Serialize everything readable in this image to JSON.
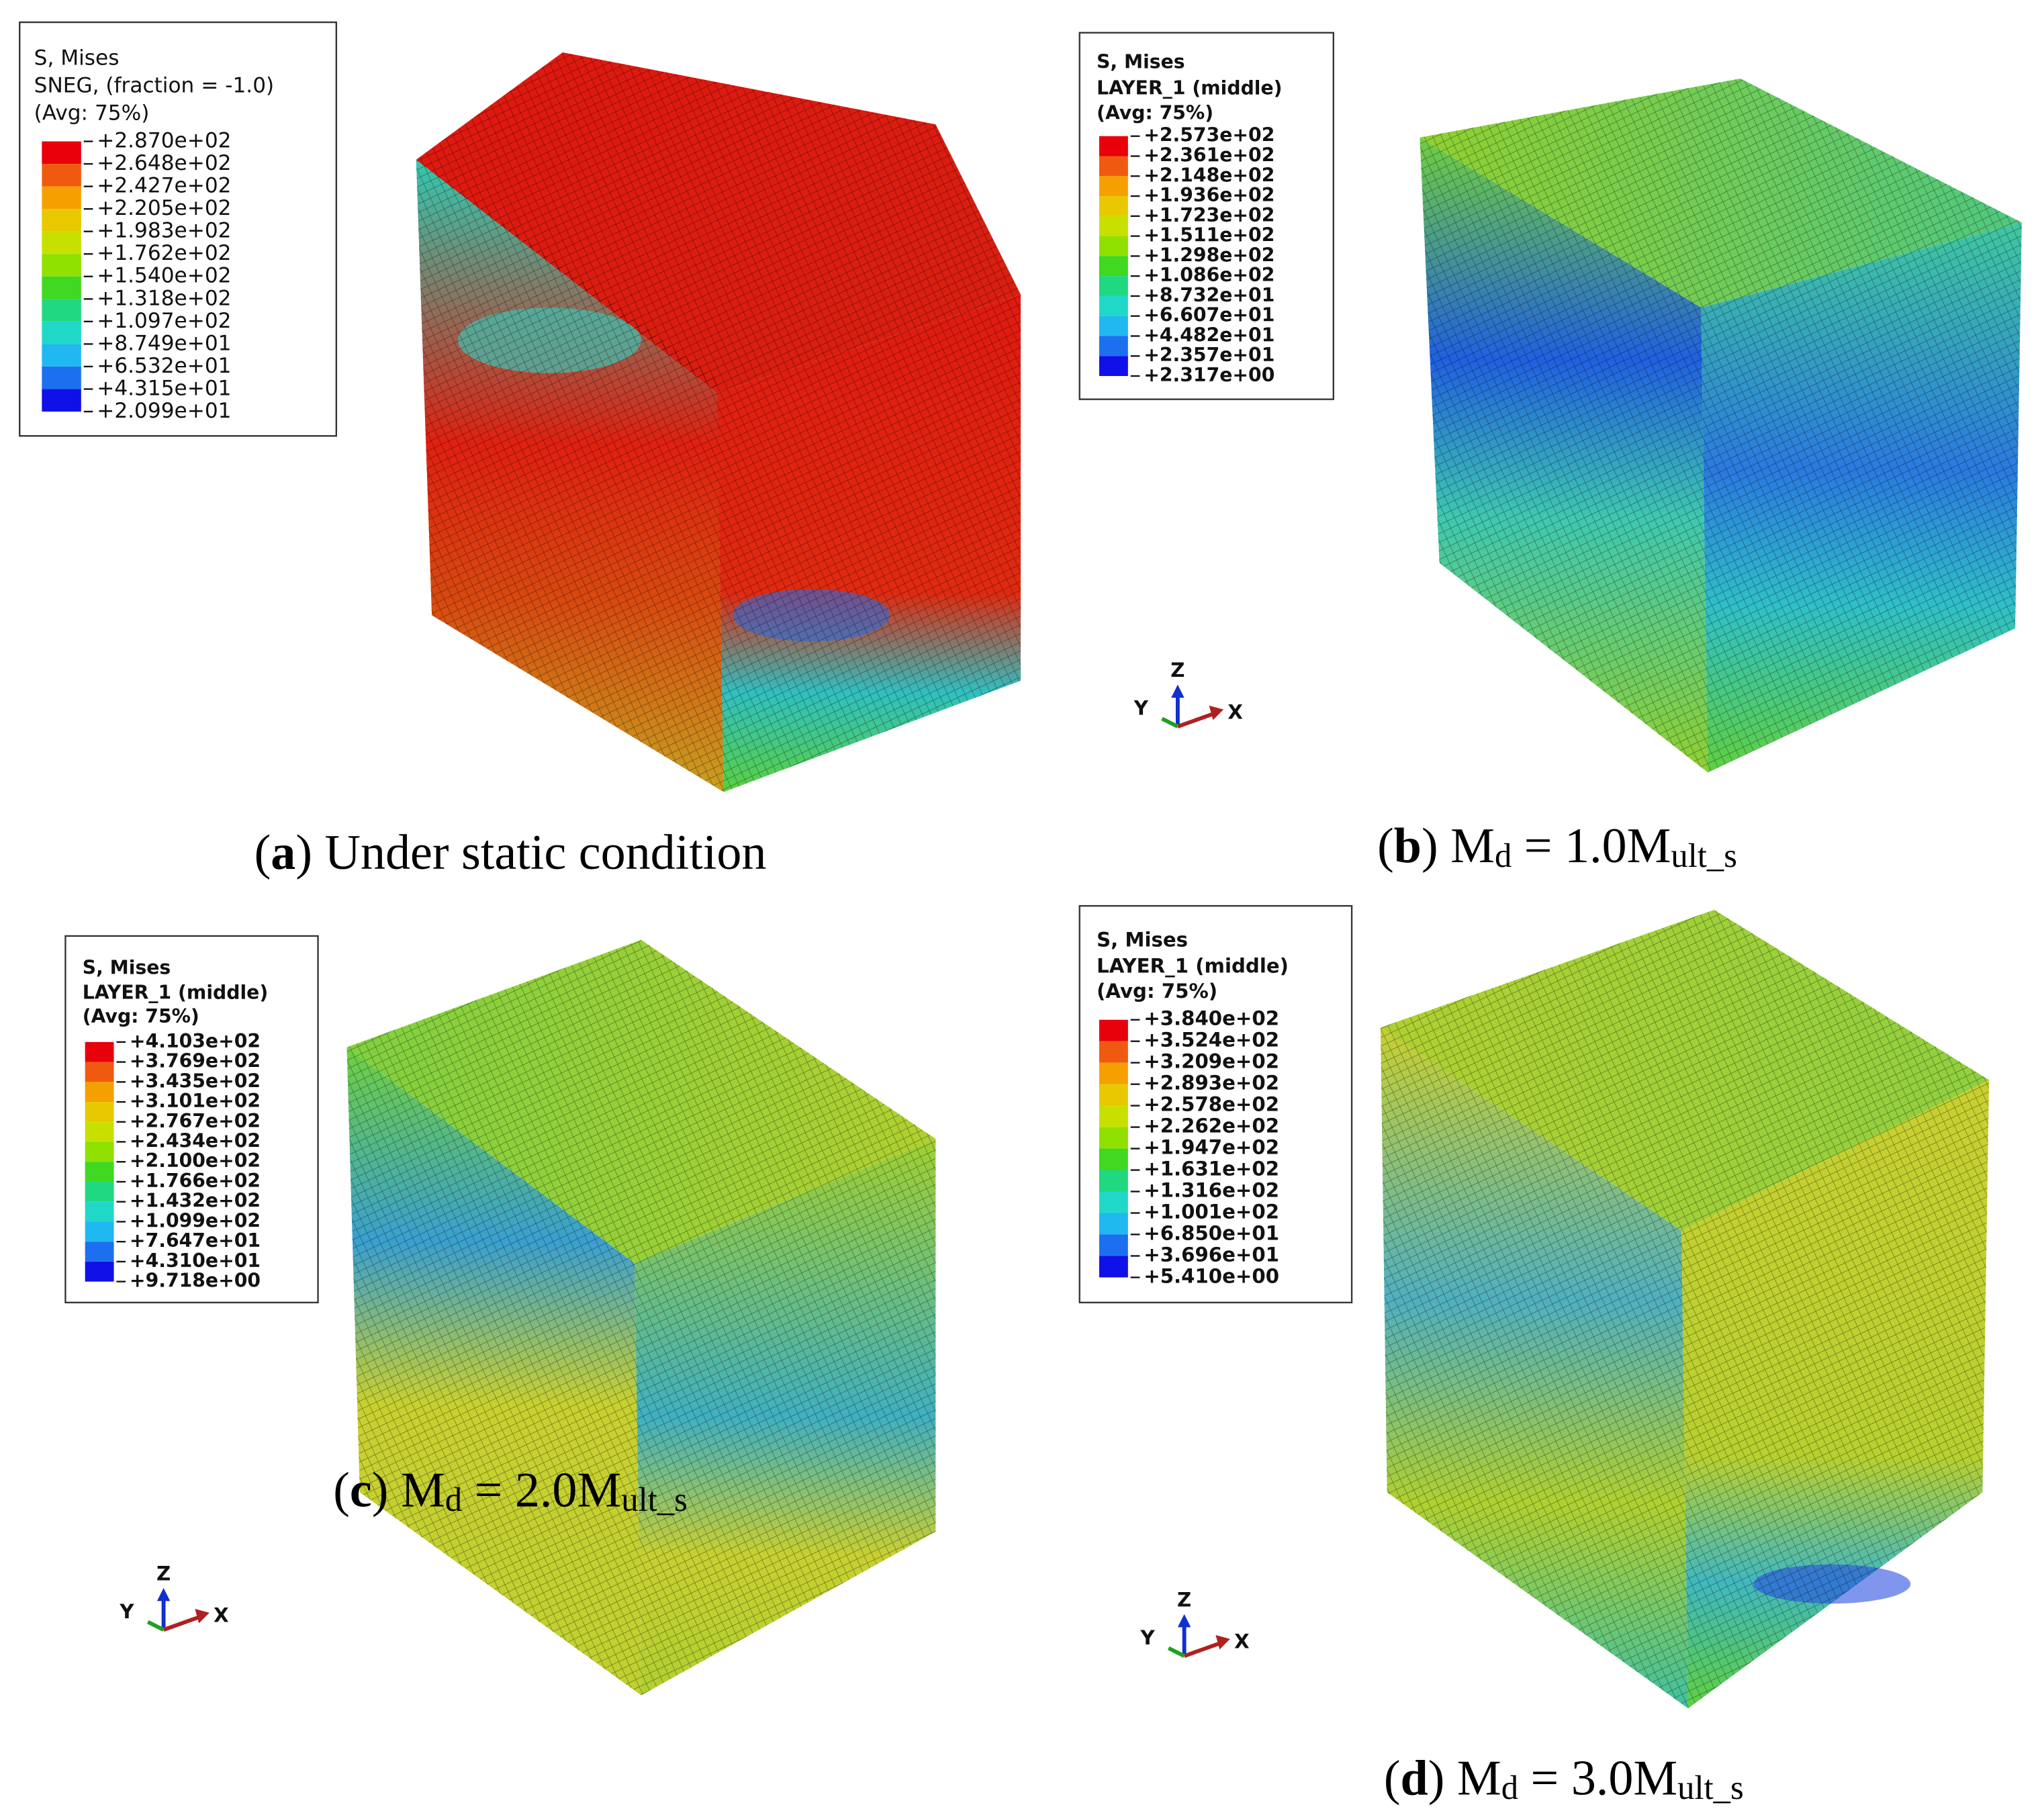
{
  "panels": [
    {
      "legend": {
        "title": [
          "S, Mises",
          "SNEG, (fraction = -1.0)",
          "(Avg: 75%)"
        ],
        "values": [
          "+2.870e+02",
          "+2.648e+02",
          "+2.427e+02",
          "+2.205e+02",
          "+1.983e+02",
          "+1.762e+02",
          "+1.540e+02",
          "+1.318e+02",
          "+1.097e+02",
          "+8.749e+01",
          "+6.532e+01",
          "+4.315e+01",
          "+2.099e+01"
        ]
      },
      "caption": [
        {
          "text": "(",
          "style": "normal"
        },
        {
          "text": "a",
          "style": "bold"
        },
        {
          "text": ") Under static condition",
          "style": "normal"
        }
      ]
    },
    {
      "legend": {
        "title": [
          "S, Mises",
          "LAYER_1 (middle)",
          "(Avg: 75%)"
        ],
        "values": [
          "+2.573e+02",
          "+2.361e+02",
          "+2.148e+02",
          "+1.936e+02",
          "+1.723e+02",
          "+1.511e+02",
          "+1.298e+02",
          "+1.086e+02",
          "+8.732e+01",
          "+6.607e+01",
          "+4.482e+01",
          "+2.357e+01",
          "+2.317e+00"
        ]
      },
      "triad": {
        "z": "Z",
        "y": "Y",
        "x": "X"
      },
      "caption": [
        {
          "text": "(",
          "style": "normal"
        },
        {
          "text": "b",
          "style": "bold"
        },
        {
          "text": ") M",
          "style": "normal"
        },
        {
          "text": "d",
          "style": "sub"
        },
        {
          "text": " = 1.0M",
          "style": "normal"
        },
        {
          "text": "ult_s",
          "style": "sub"
        }
      ]
    },
    {
      "legend": {
        "title": [
          "S, Mises",
          "LAYER_1 (middle)",
          "(Avg: 75%)"
        ],
        "values": [
          "+4.103e+02",
          "+3.769e+02",
          "+3.435e+02",
          "+3.101e+02",
          "+2.767e+02",
          "+2.434e+02",
          "+2.100e+02",
          "+1.766e+02",
          "+1.432e+02",
          "+1.099e+02",
          "+7.647e+01",
          "+4.310e+01",
          "+9.718e+00"
        ]
      },
      "triad": {
        "z": "Z",
        "y": "Y",
        "x": "X"
      },
      "caption": [
        {
          "text": "(",
          "style": "normal"
        },
        {
          "text": "c",
          "style": "bold"
        },
        {
          "text": ") M",
          "style": "normal"
        },
        {
          "text": "d",
          "style": "sub"
        },
        {
          "text": " = 2.0M",
          "style": "normal"
        },
        {
          "text": "ult_s",
          "style": "sub"
        }
      ]
    },
    {
      "legend": {
        "title": [
          "S, Mises",
          "LAYER_1 (middle)",
          "(Avg: 75%)"
        ],
        "values": [
          "+3.840e+02",
          "+3.524e+02",
          "+3.209e+02",
          "+2.893e+02",
          "+2.578e+02",
          "+2.262e+02",
          "+1.947e+02",
          "+1.631e+02",
          "+1.316e+02",
          "+1.001e+02",
          "+6.850e+01",
          "+3.696e+01",
          "+5.410e+00"
        ]
      },
      "triad": {
        "z": "Z",
        "y": "Y",
        "x": "X"
      },
      "caption": [
        {
          "text": "(",
          "style": "normal"
        },
        {
          "text": "d",
          "style": "bold"
        },
        {
          "text": ") M",
          "style": "normal"
        },
        {
          "text": "d",
          "style": "sub"
        },
        {
          "text": " = 3.0M",
          "style": "normal"
        },
        {
          "text": "ult_s",
          "style": "sub"
        }
      ]
    }
  ]
}
